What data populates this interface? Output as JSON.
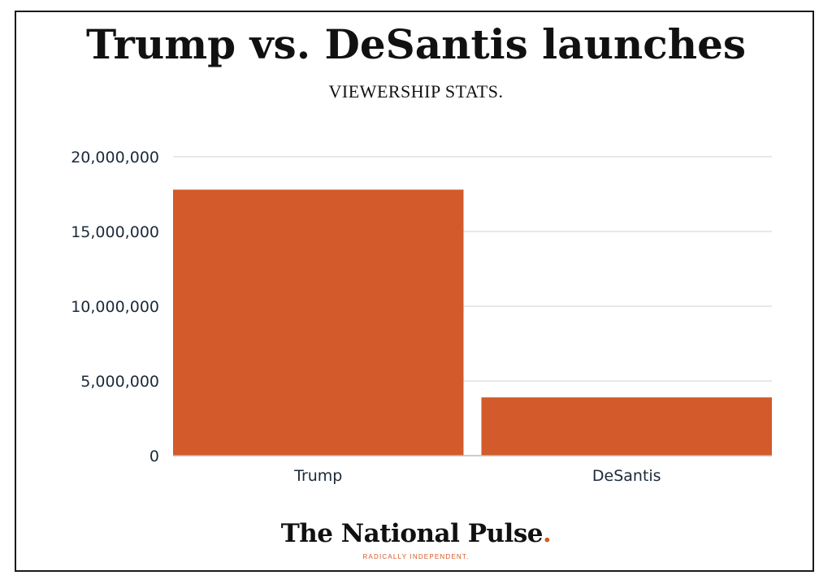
{
  "colors": {
    "bar": "#d35a2a",
    "grid": "#d0d0d0",
    "axis": "#bbbbbb",
    "text": "#1b2a3a"
  },
  "chart_data": {
    "type": "bar",
    "title": "Trump vs. DeSantis launches",
    "subtitle": "VIEWERSHIP STATS.",
    "categories": [
      "Trump",
      "DeSantis"
    ],
    "values": [
      17800000,
      3900000
    ],
    "ylim": [
      0,
      20000000
    ],
    "yticks": [
      0,
      5000000,
      10000000,
      15000000,
      20000000
    ],
    "ytick_labels": [
      "0",
      "5,000,000",
      "10,000,000",
      "15,000,000",
      "20,000,000"
    ],
    "grid": true,
    "legend": "none"
  },
  "branding": {
    "logo_text": "The National Pulse",
    "logo_dot": ".",
    "tagline": "RADICALLY INDEPENDENT."
  }
}
